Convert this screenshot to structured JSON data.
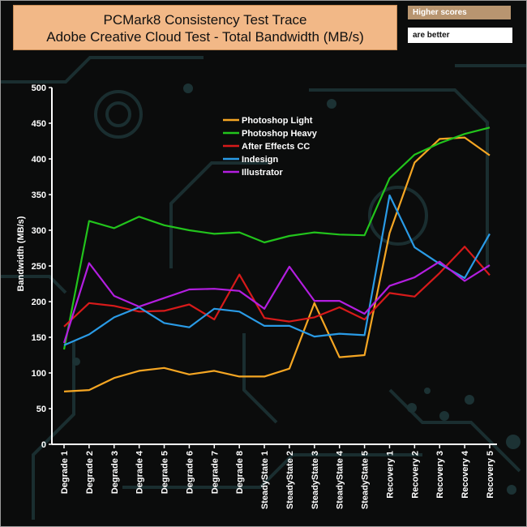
{
  "header": {
    "title_line1": "PCMark8 Consistency Test Trace",
    "title_line2": "Adobe Creative Cloud Test - Total Bandwidth (MB/s)",
    "badge_top": "Higher scores",
    "badge_bottom": "are better"
  },
  "colors": {
    "background": "#0b0c0c",
    "circuit": "#1c3234",
    "axis": "#ffffff",
    "title_bg": "#f2b887"
  },
  "chart_data": {
    "type": "line",
    "ylabel": "Bandwidth (MB/s)",
    "xlabel": "",
    "ylim": [
      0,
      500
    ],
    "yticks": [
      0,
      50,
      100,
      150,
      200,
      250,
      300,
      350,
      400,
      450,
      500
    ],
    "grid": false,
    "legend_position": "top-center",
    "categories": [
      "Degrade 1",
      "Degrade 2",
      "Degrade 3",
      "Degrade 4",
      "Degrade 5",
      "Degrade 6",
      "Degrade 7",
      "Degrade 8",
      "SteadyState 1",
      "SteadyState 2",
      "SteadyState 3",
      "SteadyState 4",
      "SteadyState 5",
      "Recovery 1",
      "Recovery 2",
      "Recovery 3",
      "Recovery 4",
      "Recovery 5"
    ],
    "series": [
      {
        "name": "Photoshop Light",
        "color": "#f5a623",
        "values": [
          74,
          76,
          93,
          103,
          107,
          98,
          103,
          95,
          95,
          106,
          198,
          122,
          125,
          296,
          395,
          428,
          430,
          405
        ]
      },
      {
        "name": " Photoshop Heavy",
        "color": "#22c41c",
        "values": [
          133,
          313,
          303,
          319,
          307,
          300,
          295,
          297,
          283,
          292,
          297,
          294,
          293,
          373,
          406,
          422,
          435,
          444
        ]
      },
      {
        "name": "After Effects CC",
        "color": "#d71a1a",
        "values": [
          165,
          198,
          194,
          186,
          187,
          196,
          175,
          238,
          177,
          172,
          178,
          192,
          175,
          212,
          207,
          240,
          277,
          237
        ]
      },
      {
        "name": "Indesign",
        "color": "#2a9be6",
        "values": [
          139,
          154,
          178,
          192,
          170,
          164,
          190,
          186,
          166,
          166,
          151,
          155,
          153,
          349,
          276,
          253,
          233,
          295
        ]
      },
      {
        "name": "Illustrator",
        "color": "#b31ee0",
        "values": [
          142,
          254,
          208,
          193,
          205,
          217,
          218,
          215,
          190,
          249,
          201,
          201,
          183,
          222,
          234,
          256,
          229,
          251
        ]
      }
    ]
  }
}
